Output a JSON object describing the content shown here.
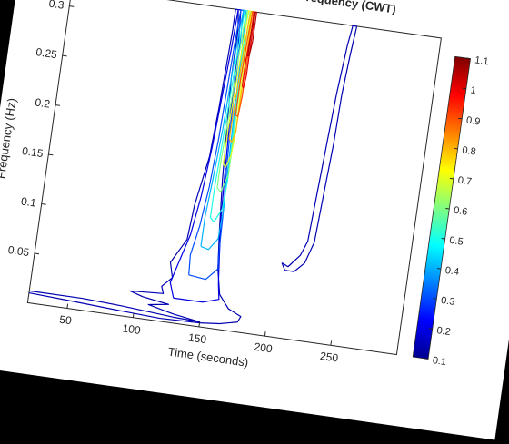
{
  "chart_data": {
    "type": "contour",
    "title": "Amyotrophic lateral sclerosis Gait Time-Frequency (CWT)",
    "xlabel": "Time (seconds)",
    "ylabel": "Frequency (Hz)",
    "xlim": [
      20,
      300
    ],
    "ylim": [
      0,
      0.32
    ],
    "xticks": [
      50,
      100,
      150,
      200,
      250
    ],
    "yticks": [
      0.05,
      0.1,
      0.15,
      0.2,
      0.25,
      0.3
    ],
    "colorbar": {
      "range": [
        0.1,
        1.1
      ],
      "ticks": [
        0.1,
        0.2,
        0.3,
        0.4,
        0.5,
        0.6,
        0.7,
        0.8,
        0.9,
        1.0,
        1.1
      ],
      "tick_labels": [
        "0.1",
        "0.2",
        "0.3",
        "0.4",
        "0.5",
        "0.6",
        "0.7",
        "0.8",
        "0.9",
        "1",
        "1.1"
      ],
      "colormap": "jet"
    },
    "contours": [
      {
        "level": 0.15,
        "points": [
          [
            20,
            0.012
          ],
          [
            60,
            0.012
          ],
          [
            90,
            0.01
          ],
          [
            110,
            0.008
          ],
          [
            130,
            0.006
          ],
          [
            150,
            0.005
          ],
          [
            130,
            0.009
          ],
          [
            120,
            0.012
          ],
          [
            110,
            0.015
          ],
          [
            125,
            0.018
          ],
          [
            105,
            0.022
          ],
          [
            95,
            0.026
          ],
          [
            120,
            0.028
          ],
          [
            118,
            0.035
          ],
          [
            125,
            0.045
          ],
          [
            122,
            0.06
          ],
          [
            132,
            0.085
          ],
          [
            134,
            0.12
          ],
          [
            140,
            0.17
          ],
          [
            142,
            0.22
          ],
          [
            143,
            0.26
          ],
          [
            144,
            0.3
          ],
          [
            144,
            0.32
          ],
          [
            146,
            0.32
          ],
          [
            148,
            0.3
          ],
          [
            148,
            0.25
          ],
          [
            150,
            0.2
          ],
          [
            152,
            0.15
          ],
          [
            155,
            0.1
          ],
          [
            158,
            0.06
          ],
          [
            162,
            0.035
          ],
          [
            170,
            0.022
          ],
          [
            180,
            0.016
          ],
          [
            178,
            0.01
          ],
          [
            165,
            0.006
          ],
          [
            150,
            0.004
          ],
          [
            120,
            0.003
          ],
          [
            90,
            0.005
          ],
          [
            50,
            0.008
          ],
          [
            20,
            0.01
          ]
        ]
      },
      {
        "level": 0.15,
        "points": [
          [
            205,
            0.075
          ],
          [
            210,
            0.072
          ],
          [
            218,
            0.085
          ],
          [
            222,
            0.1
          ],
          [
            224,
            0.15
          ],
          [
            226,
            0.2
          ],
          [
            228,
            0.25
          ],
          [
            231,
            0.3
          ],
          [
            233,
            0.32
          ],
          [
            236,
            0.32
          ],
          [
            234,
            0.29
          ],
          [
            232,
            0.25
          ],
          [
            231,
            0.2
          ],
          [
            229,
            0.15
          ],
          [
            227,
            0.1
          ],
          [
            222,
            0.078
          ],
          [
            215,
            0.068
          ],
          [
            208,
            0.068
          ],
          [
            205,
            0.075
          ]
        ]
      },
      {
        "level": 0.2,
        "points": [
          [
            128,
            0.025
          ],
          [
            124,
            0.04
          ],
          [
            128,
            0.06
          ],
          [
            134,
            0.09
          ],
          [
            138,
            0.13
          ],
          [
            141,
            0.18
          ],
          [
            143,
            0.23
          ],
          [
            145,
            0.28
          ],
          [
            146,
            0.32
          ],
          [
            148,
            0.32
          ],
          [
            150,
            0.28
          ],
          [
            151,
            0.22
          ],
          [
            153,
            0.16
          ],
          [
            155,
            0.11
          ],
          [
            158,
            0.07
          ],
          [
            160,
            0.045
          ],
          [
            162,
            0.03
          ],
          [
            150,
            0.025
          ],
          [
            128,
            0.025
          ]
        ]
      },
      {
        "level": 0.3,
        "points": [
          [
            137,
            0.05
          ],
          [
            136,
            0.07
          ],
          [
            140,
            0.1
          ],
          [
            143,
            0.14
          ],
          [
            145,
            0.19
          ],
          [
            146,
            0.24
          ],
          [
            147,
            0.29
          ],
          [
            148,
            0.32
          ],
          [
            150,
            0.32
          ],
          [
            151,
            0.28
          ],
          [
            152,
            0.22
          ],
          [
            154,
            0.16
          ],
          [
            156,
            0.12
          ],
          [
            157,
            0.08
          ],
          [
            158,
            0.06
          ],
          [
            150,
            0.048
          ],
          [
            137,
            0.05
          ]
        ]
      },
      {
        "level": 0.4,
        "points": [
          [
            143,
            0.08
          ],
          [
            143,
            0.11
          ],
          [
            145,
            0.15
          ],
          [
            147,
            0.2
          ],
          [
            148,
            0.25
          ],
          [
            149,
            0.3
          ],
          [
            150,
            0.32
          ],
          [
            152,
            0.32
          ],
          [
            153,
            0.27
          ],
          [
            154,
            0.21
          ],
          [
            155,
            0.16
          ],
          [
            156,
            0.12
          ],
          [
            155,
            0.09
          ],
          [
            149,
            0.078
          ],
          [
            143,
            0.08
          ]
        ]
      },
      {
        "level": 0.5,
        "points": [
          [
            147,
            0.11
          ],
          [
            147,
            0.14
          ],
          [
            148,
            0.18
          ],
          [
            149,
            0.23
          ],
          [
            150,
            0.28
          ],
          [
            151,
            0.32
          ],
          [
            153,
            0.32
          ],
          [
            154,
            0.26
          ],
          [
            155,
            0.2
          ],
          [
            156,
            0.15
          ],
          [
            155,
            0.12
          ],
          [
            150,
            0.106
          ],
          [
            147,
            0.11
          ]
        ]
      },
      {
        "level": 0.6,
        "points": [
          [
            149,
            0.14
          ],
          [
            149,
            0.17
          ],
          [
            150,
            0.21
          ],
          [
            151,
            0.26
          ],
          [
            152,
            0.31
          ],
          [
            153,
            0.32
          ],
          [
            155,
            0.32
          ],
          [
            155,
            0.25
          ],
          [
            156,
            0.19
          ],
          [
            156,
            0.155
          ],
          [
            152,
            0.137
          ],
          [
            149,
            0.14
          ]
        ]
      },
      {
        "level": 0.7,
        "points": [
          [
            151,
            0.165
          ],
          [
            151,
            0.2
          ],
          [
            152,
            0.24
          ],
          [
            153,
            0.29
          ],
          [
            154,
            0.32
          ],
          [
            156,
            0.32
          ],
          [
            156,
            0.25
          ],
          [
            157,
            0.2
          ],
          [
            156,
            0.175
          ],
          [
            153,
            0.162
          ],
          [
            151,
            0.165
          ]
        ]
      },
      {
        "level": 0.8,
        "points": [
          [
            153,
            0.19
          ],
          [
            153,
            0.22
          ],
          [
            154,
            0.26
          ],
          [
            155,
            0.31
          ],
          [
            156,
            0.32
          ],
          [
            157,
            0.32
          ],
          [
            157,
            0.26
          ],
          [
            157,
            0.22
          ],
          [
            157,
            0.198
          ],
          [
            155,
            0.188
          ],
          [
            153,
            0.19
          ]
        ]
      },
      {
        "level": 0.9,
        "points": [
          [
            155,
            0.215
          ],
          [
            155,
            0.25
          ],
          [
            156,
            0.29
          ],
          [
            157,
            0.32
          ],
          [
            158,
            0.32
          ],
          [
            158,
            0.27
          ],
          [
            158,
            0.235
          ],
          [
            157,
            0.214
          ],
          [
            155,
            0.215
          ]
        ]
      },
      {
        "level": 1.0,
        "points": [
          [
            157,
            0.245
          ],
          [
            157,
            0.27
          ],
          [
            158,
            0.3
          ],
          [
            158,
            0.32
          ],
          [
            159,
            0.32
          ],
          [
            159,
            0.28
          ],
          [
            159,
            0.255
          ],
          [
            158,
            0.243
          ],
          [
            157,
            0.245
          ]
        ]
      },
      {
        "level": 1.05,
        "points": [
          [
            158,
            0.275
          ],
          [
            158,
            0.3
          ],
          [
            159,
            0.32
          ],
          [
            160,
            0.32
          ],
          [
            160,
            0.29
          ],
          [
            159,
            0.276
          ],
          [
            158,
            0.275
          ]
        ]
      }
    ]
  }
}
